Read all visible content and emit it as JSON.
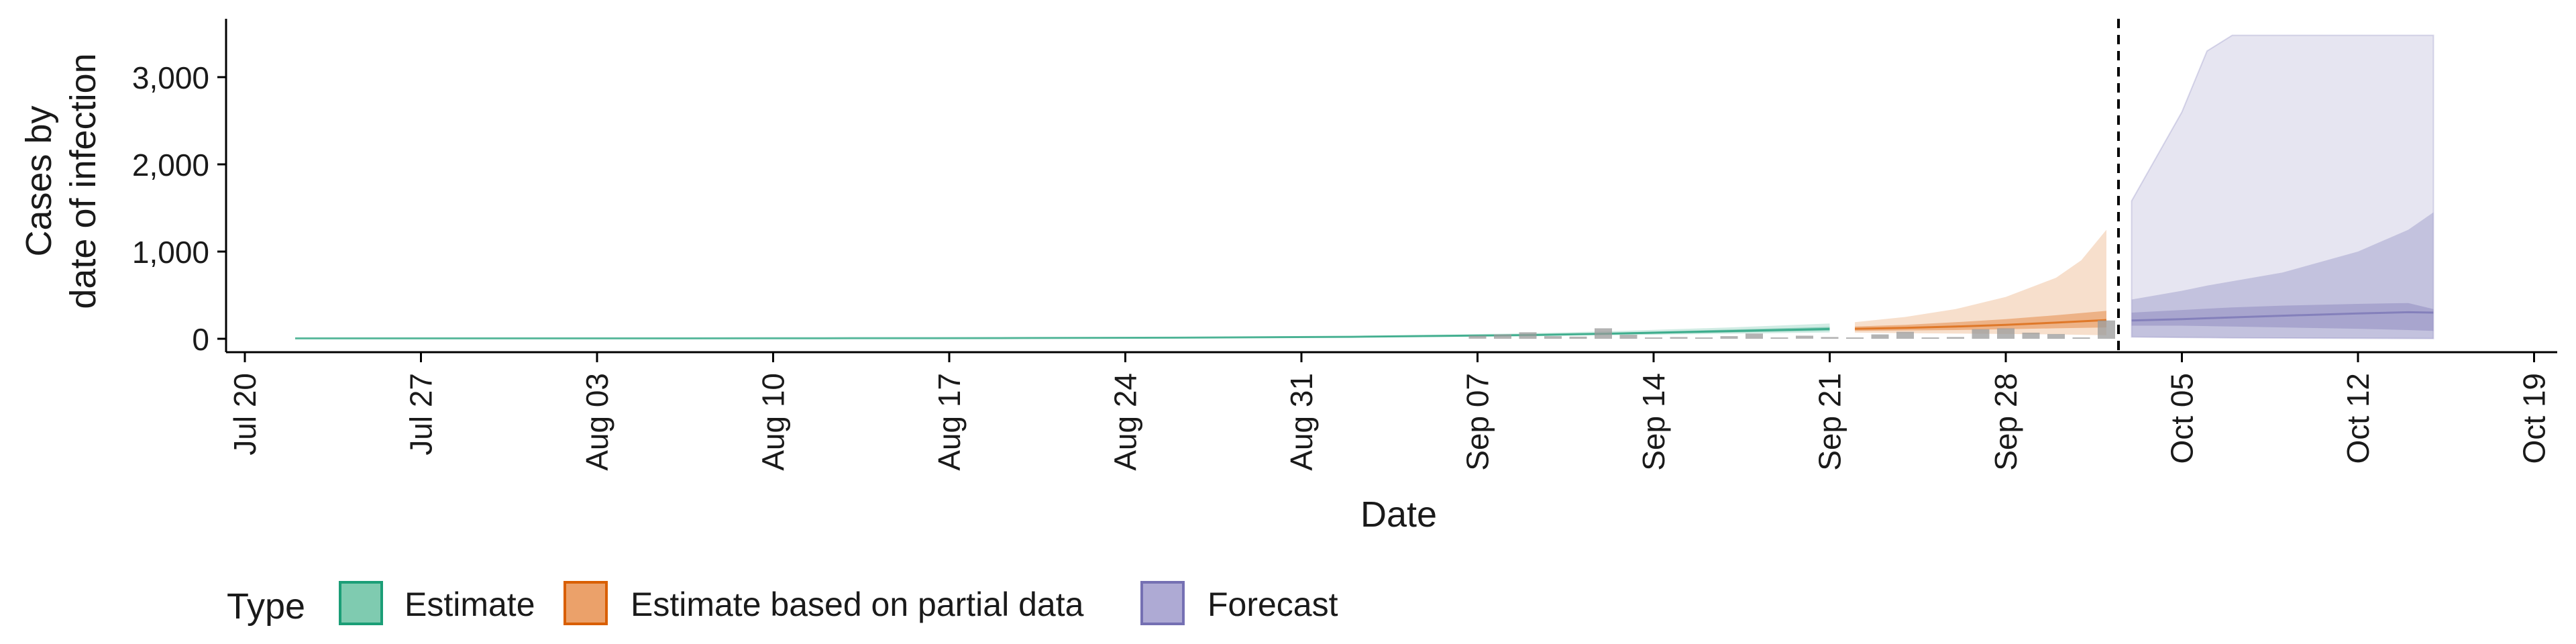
{
  "chart_data": {
    "type": "area",
    "xlabel": "Date",
    "ylabel_lines": [
      "Cases by",
      "date of infection"
    ],
    "x_ticks": [
      "Jul 20",
      "Jul 27",
      "Aug 03",
      "Aug 10",
      "Aug 17",
      "Aug 24",
      "Aug 31",
      "Sep 07",
      "Sep 14",
      "Sep 21",
      "Sep 28",
      "Oct 05",
      "Oct 12",
      "Oct 19"
    ],
    "x_tick_dates": [
      "2020-07-20",
      "2020-07-27",
      "2020-08-03",
      "2020-08-10",
      "2020-08-17",
      "2020-08-24",
      "2020-08-31",
      "2020-09-07",
      "2020-09-14",
      "2020-09-21",
      "2020-09-28",
      "2020-10-05",
      "2020-10-12",
      "2020-10-19"
    ],
    "xlim": [
      "2020-07-20",
      "2020-10-19"
    ],
    "y_ticks": [
      0,
      1000,
      2000,
      3000
    ],
    "y_tick_labels": [
      "0",
      "1,000",
      "2,000",
      "3,000"
    ],
    "ylim": [
      0,
      3500
    ],
    "forecast_date": "2020-10-02",
    "legend": {
      "title": "Type",
      "position": "bottom",
      "items": [
        {
          "label": "Estimate",
          "fill": "#7fcbb0",
          "stroke": "#1b9e77"
        },
        {
          "label": "Estimate based on partial data",
          "fill": "#eba16a",
          "stroke": "#d95f02"
        },
        {
          "label": "Forecast",
          "fill": "#aeaad4",
          "stroke": "#7570b3"
        }
      ]
    },
    "colors": {
      "Estimate": "#1b9e77",
      "Estimate based on partial data": "#d95f02",
      "Forecast": "#7570b3",
      "observed": "#999999"
    },
    "series": [
      {
        "name": "Estimate",
        "x": [
          "2020-07-22",
          "2020-07-29",
          "2020-08-05",
          "2020-08-12",
          "2020-08-19",
          "2020-08-26",
          "2020-09-02",
          "2020-09-09",
          "2020-09-13",
          "2020-09-17",
          "2020-09-21"
        ],
        "median": [
          5,
          5,
          5,
          6,
          8,
          12,
          22,
          42,
          62,
          88,
          112
        ],
        "inner_low": [
          4,
          4,
          4,
          5,
          6,
          10,
          18,
          35,
          52,
          72,
          92
        ],
        "inner_high": [
          6,
          6,
          6,
          8,
          10,
          15,
          27,
          50,
          75,
          105,
          135
        ],
        "outer_low": [
          3,
          3,
          3,
          4,
          5,
          8,
          14,
          28,
          42,
          58,
          72
        ],
        "outer_high": [
          8,
          8,
          8,
          10,
          13,
          19,
          34,
          62,
          92,
          130,
          175
        ]
      },
      {
        "name": "Estimate based on partial data",
        "x": [
          "2020-09-22",
          "2020-09-24",
          "2020-09-26",
          "2020-09-28",
          "2020-09-30",
          "2020-10-01",
          "2020-10-02"
        ],
        "median": [
          115,
          125,
          140,
          160,
          185,
          200,
          215
        ],
        "inner_low": [
          90,
          95,
          100,
          110,
          120,
          125,
          130
        ],
        "inner_high": [
          140,
          160,
          190,
          225,
          270,
          295,
          320
        ],
        "outer_low": [
          70,
          65,
          60,
          55,
          50,
          45,
          40
        ],
        "outer_high": [
          190,
          250,
          340,
          480,
          700,
          900,
          1250
        ]
      },
      {
        "name": "Forecast",
        "x": [
          "2020-10-03",
          "2020-10-05",
          "2020-10-06",
          "2020-10-07",
          "2020-10-09",
          "2020-10-12",
          "2020-10-14",
          "2020-10-15"
        ],
        "median": [
          210,
          225,
          235,
          245,
          265,
          290,
          305,
          300
        ],
        "inner_low": [
          150,
          150,
          145,
          140,
          130,
          115,
          100,
          90
        ],
        "inner_high": [
          300,
          330,
          345,
          360,
          380,
          400,
          410,
          340
        ],
        "outer_low": [
          20,
          15,
          12,
          10,
          8,
          5,
          3,
          2
        ],
        "outer_high": [
          1580,
          2600,
          3300,
          3480,
          3480,
          3480,
          3480,
          3480
        ],
        "outer_mid": [
          450,
          550,
          610,
          660,
          760,
          1000,
          1250,
          1450
        ]
      }
    ],
    "observed": {
      "x": [
        "2020-09-07",
        "2020-09-08",
        "2020-09-09",
        "2020-09-10",
        "2020-09-11",
        "2020-09-12",
        "2020-09-13",
        "2020-09-14",
        "2020-09-15",
        "2020-09-16",
        "2020-09-17",
        "2020-09-18",
        "2020-09-19",
        "2020-09-20",
        "2020-09-21",
        "2020-09-22",
        "2020-09-23",
        "2020-09-24",
        "2020-09-25",
        "2020-09-26",
        "2020-09-27",
        "2020-09-28",
        "2020-09-29",
        "2020-09-30",
        "2020-10-01",
        "2020-10-02"
      ],
      "values": [
        35,
        50,
        75,
        30,
        25,
        120,
        45,
        15,
        20,
        10,
        30,
        60,
        15,
        35,
        20,
        10,
        50,
        80,
        10,
        20,
        110,
        120,
        70,
        55,
        15,
        210
      ]
    }
  }
}
